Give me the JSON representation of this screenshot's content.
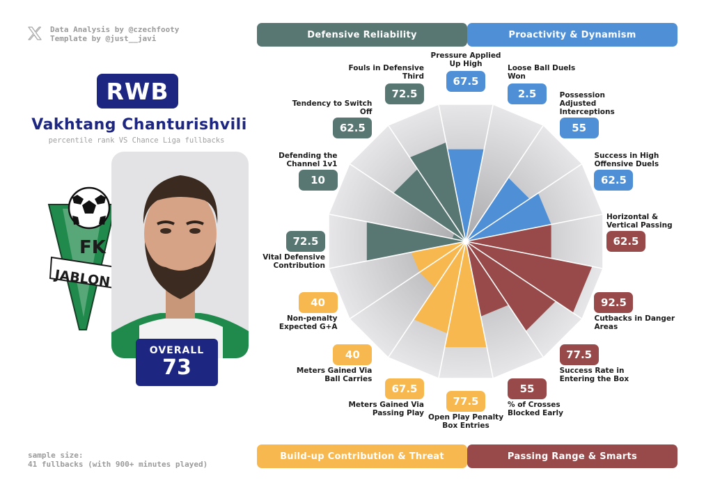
{
  "credits": {
    "analysis": "Data Analysis by @czechfooty",
    "template": "Template by @just__javi"
  },
  "player": {
    "position": "RWB",
    "name": "Vakhtang Chanturishvili",
    "subtitle": "percentile rank VS Chance Liga fullbacks",
    "overall_label": "OVERALL",
    "overall_value": "73",
    "club_text_1": "FK",
    "club_text_2": "JABLON"
  },
  "sample": {
    "line1": "sample size:",
    "line2": "41 fullbacks (with 900+ minutes played)"
  },
  "colors": {
    "defensive": "#587672",
    "proactivity": "#4f8fd6",
    "buildup": "#f7b84f",
    "passing": "#974a49",
    "club_green": "#1f8a4c"
  },
  "chart_data": {
    "type": "radar",
    "scale_max": 100,
    "categories": [
      {
        "name": "Defensive Reliability",
        "color": "#587672"
      },
      {
        "name": "Proactivity & Dynamism",
        "color": "#4f8fd6"
      },
      {
        "name": "Build-up Contribution & Threat",
        "color": "#f7b84f"
      },
      {
        "name": "Passing Range & Smarts",
        "color": "#974a49"
      }
    ],
    "metrics": [
      {
        "label": "Pressure Applied Up High",
        "value": 67.5,
        "display": "67.5",
        "category": 1
      },
      {
        "label": "Loose Ball Duels Won",
        "value": 2.5,
        "display": "2.5",
        "category": 1
      },
      {
        "label": "Possession Adjusted Interceptions",
        "value": 55,
        "display": "55",
        "category": 1
      },
      {
        "label": "Success in High Offensive Duels",
        "value": 62.5,
        "display": "62.5",
        "category": 1
      },
      {
        "label": "Horizontal & Vertical Passing",
        "value": 62.5,
        "display": "62.5",
        "category": 3
      },
      {
        "label": "Cutbacks in Danger Areas",
        "value": 92.5,
        "display": "92.5",
        "category": 3
      },
      {
        "label": "Success Rate in Entering the Box",
        "value": 77.5,
        "display": "77.5",
        "category": 3
      },
      {
        "label": "% of Crosses Blocked Early",
        "value": 55,
        "display": "55",
        "category": 3
      },
      {
        "label": "Open Play Penalty Box Entries",
        "value": 77.5,
        "display": "77.5",
        "category": 2
      },
      {
        "label": "Meters Gained Via Passing Play",
        "value": 67.5,
        "display": "67.5",
        "category": 2
      },
      {
        "label": "Meters Gained Via Ball Carries",
        "value": 40,
        "display": "40",
        "category": 2
      },
      {
        "label": "Non-penalty Expected G+A",
        "value": 40,
        "display": "40",
        "category": 2
      },
      {
        "label": "Vital Defensive Contribution",
        "value": 72.5,
        "display": "72.5",
        "category": 0
      },
      {
        "label": "Defending the Channel 1v1",
        "value": 10,
        "display": "10",
        "category": 0
      },
      {
        "label": "Tendency to Switch Off",
        "value": 62.5,
        "display": "62.5",
        "category": 0
      },
      {
        "label": "Fouls in Defensive Third",
        "value": 72.5,
        "display": "72.5",
        "category": 0
      }
    ]
  }
}
